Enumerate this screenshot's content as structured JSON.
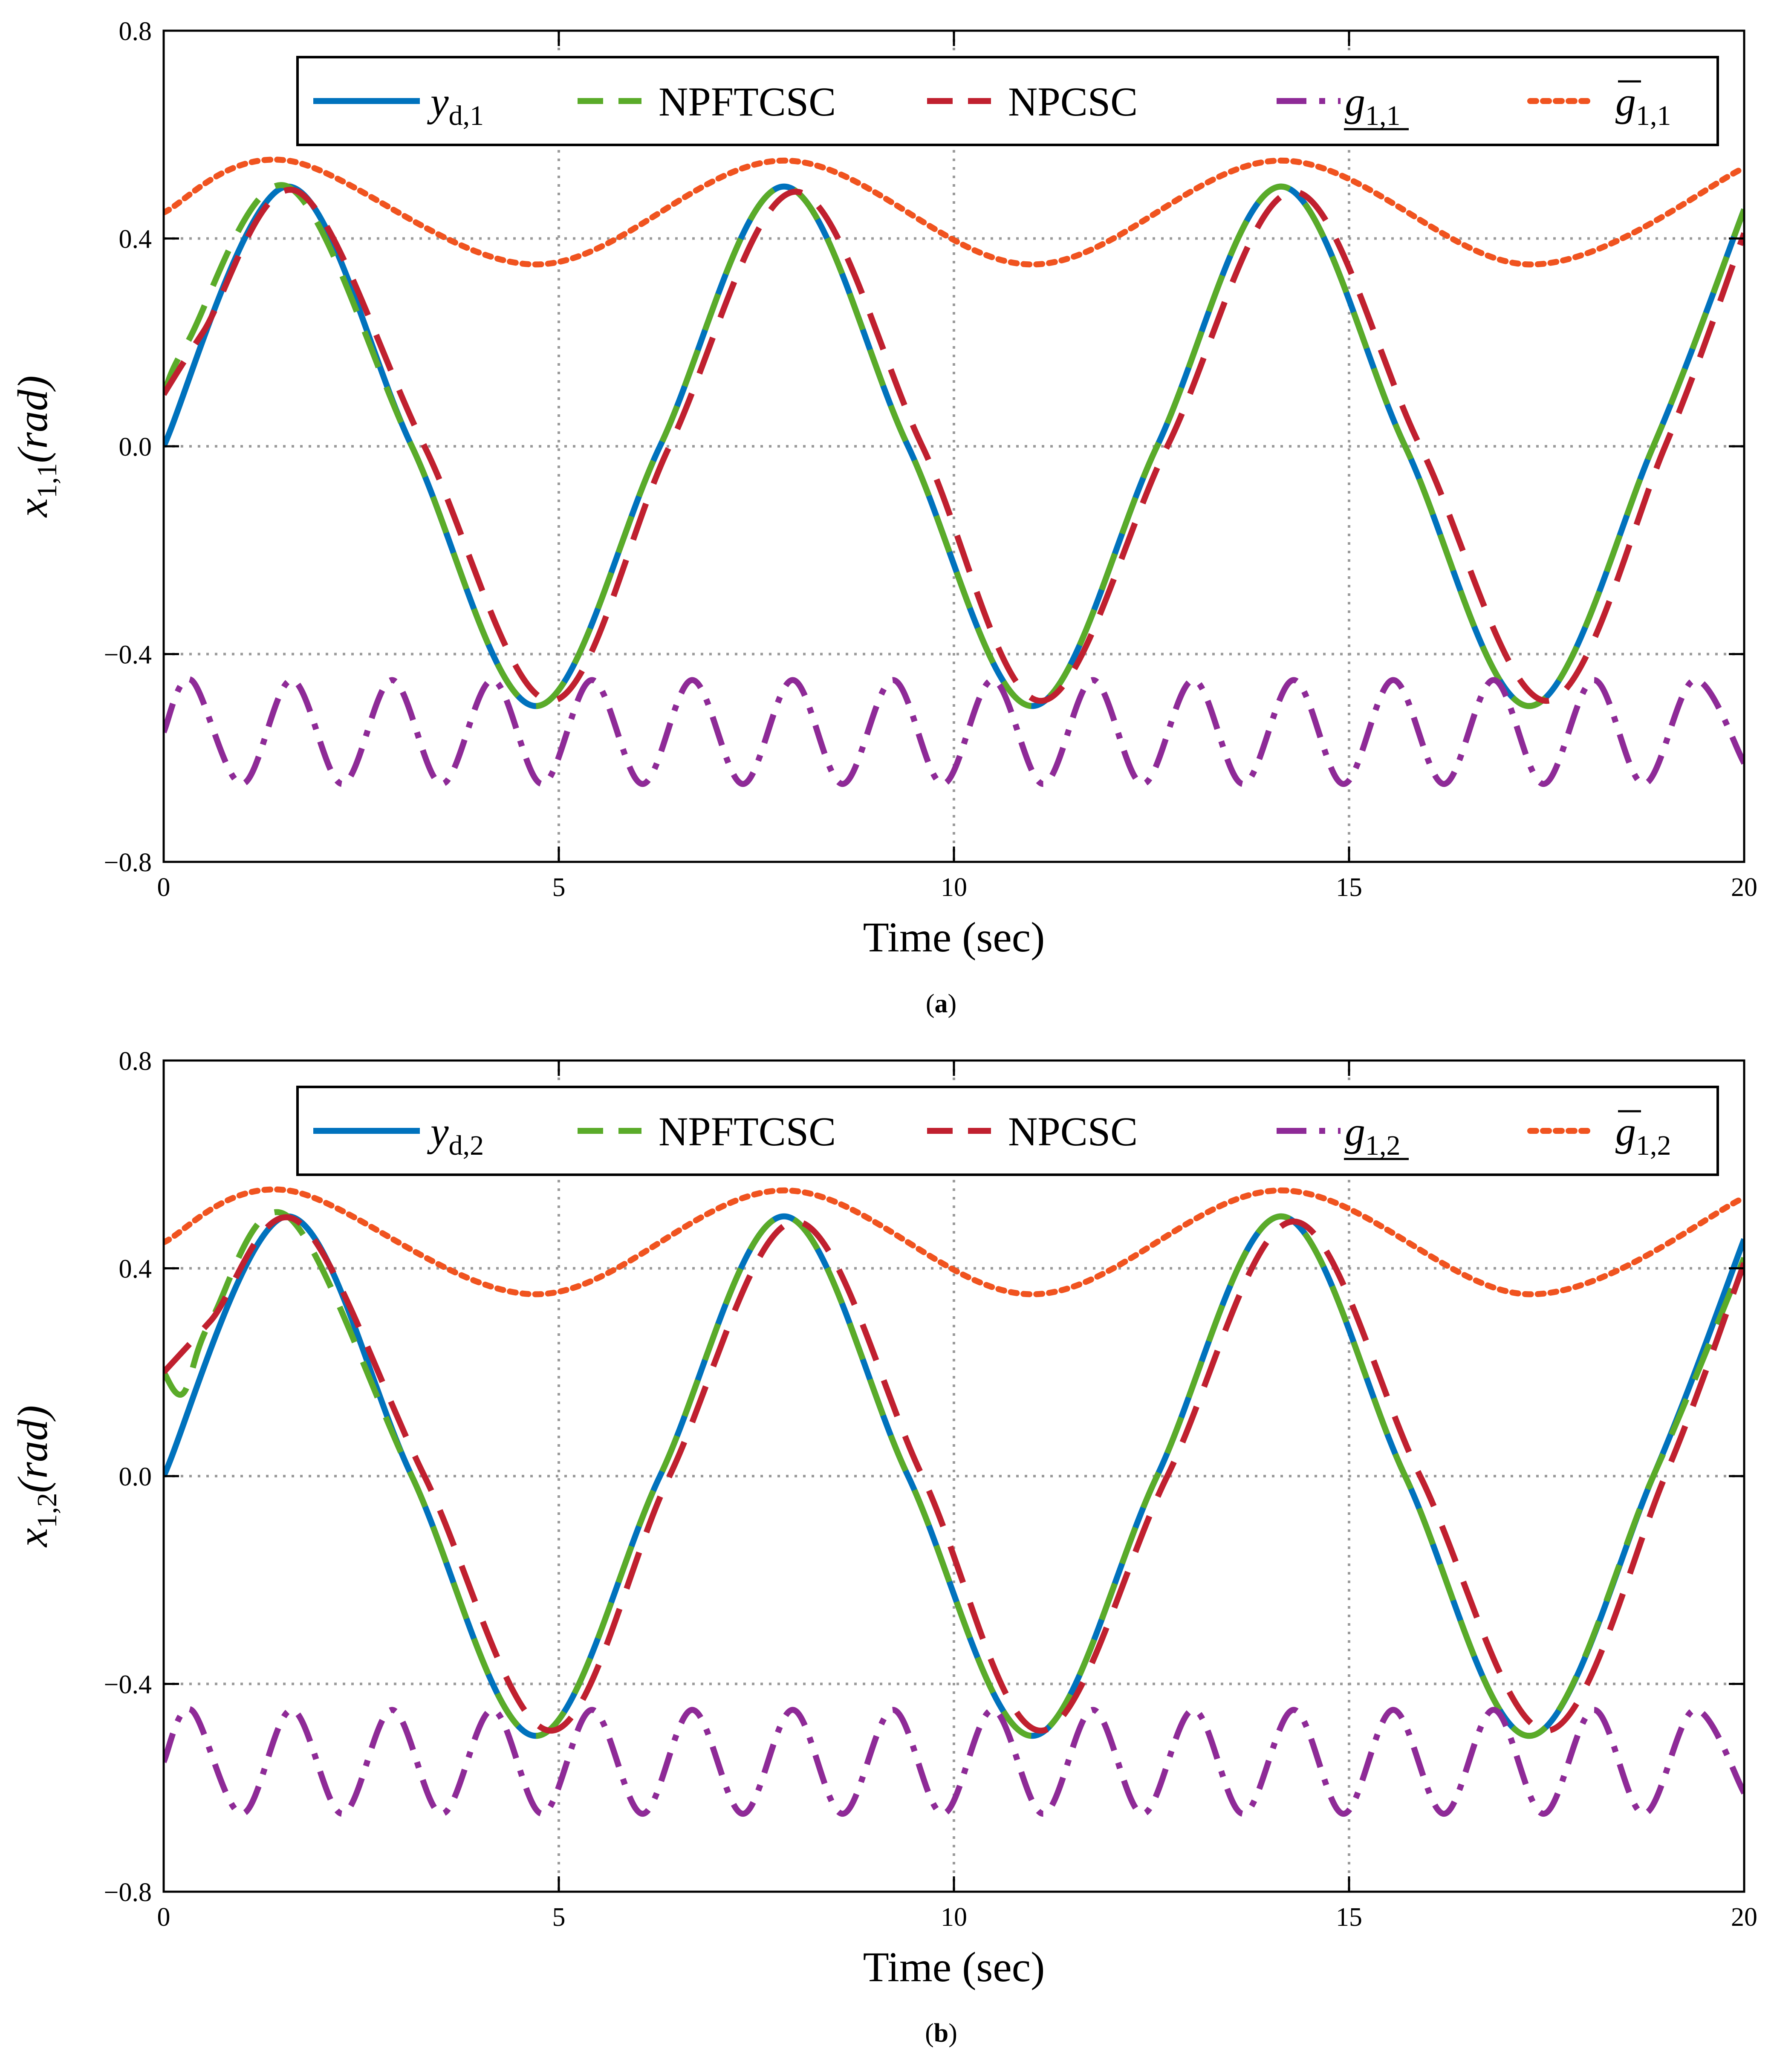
{
  "chart_data": [
    {
      "type": "line",
      "panel_label": "a",
      "caption": {
        "open": "(",
        "label": "a",
        "close": ")"
      },
      "xlabel": "Time (sec)",
      "ylabel": {
        "var": "x",
        "sub": "1,1",
        "unit": "(rad)"
      },
      "xlim": [
        0,
        20
      ],
      "ylim": [
        -0.8,
        0.8
      ],
      "xticks": [
        0,
        5,
        10,
        15,
        20
      ],
      "xtick_labels": [
        "0",
        "5",
        "10",
        "15",
        "20"
      ],
      "yticks": [
        -0.8,
        -0.4,
        0.0,
        0.4,
        0.8
      ],
      "ytick_labels": [
        "−0.8",
        "−0.4",
        "0.0",
        "0.4",
        "0.8"
      ],
      "grid": true,
      "legend_position": "top-right",
      "series": [
        {
          "name": "y_d,1",
          "legend": {
            "base": "y",
            "sub": "d,1",
            "deco": ""
          },
          "color": "#0072bd",
          "dash": "solid",
          "x": [
            0,
            1.57,
            3.14,
            4.71,
            6.28,
            7.85,
            9.42,
            10.99,
            12.57,
            14.14,
            15.71,
            17.28,
            18.85,
            20
          ],
          "y": [
            0,
            0.5,
            0,
            -0.5,
            0,
            0.5,
            0,
            -0.5,
            0,
            0.5,
            0,
            -0.5,
            0,
            0.456
          ]
        },
        {
          "name": "NPFTCSC",
          "legend": {
            "base": "NPFTCSC",
            "sub": "",
            "deco": ""
          },
          "color": "#5aab29",
          "dash": "dashed",
          "x": [
            0,
            0.3,
            1.57,
            3.14,
            4.71,
            6.28,
            7.85,
            9.42,
            10.99,
            12.57,
            14.14,
            15.71,
            17.28,
            18.85,
            20
          ],
          "y": [
            0.1,
            0.2,
            0.5,
            0,
            -0.5,
            0,
            0.5,
            0,
            -0.5,
            0,
            0.5,
            0,
            -0.5,
            0,
            0.456
          ]
        },
        {
          "name": "NPCSC",
          "legend": {
            "base": "NPCSC",
            "sub": "",
            "deco": ""
          },
          "color": "#c0202f",
          "dash": "dashed",
          "x": [
            0,
            0.5,
            1.7,
            3.3,
            4.9,
            6.4,
            8.0,
            9.6,
            11.1,
            12.7,
            14.3,
            15.9,
            17.5,
            19.0,
            20
          ],
          "y": [
            0.1,
            0.22,
            0.49,
            0,
            -0.49,
            0,
            0.49,
            0,
            -0.49,
            0,
            0.49,
            0,
            -0.49,
            0,
            0.41
          ]
        },
        {
          "name": "g_1,1 (lower)",
          "legend": {
            "base": "g",
            "sub": "1,1",
            "deco": "under"
          },
          "color": "#8e2a97",
          "dash": "dashdot",
          "x": [
            0,
            0.35,
            0.99,
            1.62,
            2.26,
            2.89,
            3.52,
            4.16,
            4.79,
            5.42,
            6.06,
            6.69,
            7.33,
            7.96,
            8.59,
            9.23,
            9.86,
            10.49,
            11.13,
            11.76,
            12.39,
            13.03,
            13.66,
            14.3,
            14.93,
            15.56,
            16.2,
            16.83,
            17.46,
            18.1,
            18.73,
            19.37,
            20
          ],
          "y": [
            -0.55,
            -0.45,
            -0.65,
            -0.45,
            -0.65,
            -0.45,
            -0.65,
            -0.45,
            -0.65,
            -0.45,
            -0.65,
            -0.45,
            -0.65,
            -0.45,
            -0.65,
            -0.45,
            -0.65,
            -0.45,
            -0.65,
            -0.45,
            -0.65,
            -0.45,
            -0.65,
            -0.45,
            -0.65,
            -0.45,
            -0.65,
            -0.45,
            -0.65,
            -0.45,
            -0.65,
            -0.45,
            -0.61
          ]
        },
        {
          "name": "g_1,1 (upper)",
          "legend": {
            "base": "g",
            "sub": "1,1",
            "deco": "over"
          },
          "color": "#f0531f",
          "dash": "dotted",
          "x": [
            0,
            1.57,
            4.71,
            7.85,
            10.99,
            14.14,
            17.28,
            20
          ],
          "y": [
            0.45,
            0.55,
            0.35,
            0.55,
            0.35,
            0.55,
            0.35,
            0.536
          ]
        }
      ]
    },
    {
      "type": "line",
      "panel_label": "b",
      "caption": {
        "open": "(",
        "label": "b",
        "close": ")"
      },
      "xlabel": "Time (sec)",
      "ylabel": {
        "var": "x",
        "sub": "1,2",
        "unit": "(rad)"
      },
      "xlim": [
        0,
        20
      ],
      "ylim": [
        -0.8,
        0.8
      ],
      "xticks": [
        0,
        5,
        10,
        15,
        20
      ],
      "xtick_labels": [
        "0",
        "5",
        "10",
        "15",
        "20"
      ],
      "yticks": [
        -0.8,
        -0.4,
        0.0,
        0.4,
        0.8
      ],
      "ytick_labels": [
        "−0.8",
        "−0.4",
        "0.0",
        "0.4",
        "0.8"
      ],
      "grid": true,
      "legend_position": "top-right",
      "series": [
        {
          "name": "y_d,2",
          "legend": {
            "base": "y",
            "sub": "d,2",
            "deco": ""
          },
          "color": "#0072bd",
          "dash": "solid",
          "x": [
            0,
            1.57,
            3.14,
            4.71,
            6.28,
            7.85,
            9.42,
            10.99,
            12.57,
            14.14,
            15.71,
            17.28,
            18.85,
            20
          ],
          "y": [
            0,
            0.5,
            0,
            -0.5,
            0,
            0.5,
            0,
            -0.5,
            0,
            0.5,
            0,
            -0.5,
            0,
            0.456
          ]
        },
        {
          "name": "NPFTCSC",
          "legend": {
            "base": "NPFTCSC",
            "sub": "",
            "deco": ""
          },
          "color": "#5aab29",
          "dash": "dashed",
          "x": [
            0,
            0.25,
            0.6,
            1.57,
            3.14,
            4.71,
            6.28,
            7.85,
            9.42,
            10.99,
            12.57,
            14.14,
            15.71,
            17.28,
            18.85,
            20
          ],
          "y": [
            0.2,
            0.16,
            0.3,
            0.5,
            0,
            -0.5,
            0,
            0.5,
            0,
            -0.5,
            0,
            0.5,
            0,
            -0.5,
            0,
            0.42
          ]
        },
        {
          "name": "NPCSC",
          "legend": {
            "base": "NPCSC",
            "sub": "",
            "deco": ""
          },
          "color": "#c0202f",
          "dash": "dashed",
          "x": [
            0,
            0.6,
            1.7,
            3.3,
            4.9,
            6.4,
            8.0,
            9.6,
            11.1,
            12.7,
            14.3,
            15.9,
            17.5,
            19.0,
            20
          ],
          "y": [
            0.2,
            0.3,
            0.49,
            0,
            -0.49,
            0,
            0.49,
            0,
            -0.49,
            0,
            0.49,
            0,
            -0.49,
            0,
            0.41
          ]
        },
        {
          "name": "g_1,2 (lower)",
          "legend": {
            "base": "g",
            "sub": "1,2",
            "deco": "under"
          },
          "color": "#8e2a97",
          "dash": "dashdot",
          "x": [
            0,
            0.35,
            0.99,
            1.62,
            2.26,
            2.89,
            3.52,
            4.16,
            4.79,
            5.42,
            6.06,
            6.69,
            7.33,
            7.96,
            8.59,
            9.23,
            9.86,
            10.49,
            11.13,
            11.76,
            12.39,
            13.03,
            13.66,
            14.3,
            14.93,
            15.56,
            16.2,
            16.83,
            17.46,
            18.1,
            18.73,
            19.37,
            20
          ],
          "y": [
            -0.55,
            -0.45,
            -0.65,
            -0.45,
            -0.65,
            -0.45,
            -0.65,
            -0.45,
            -0.65,
            -0.45,
            -0.65,
            -0.45,
            -0.65,
            -0.45,
            -0.65,
            -0.45,
            -0.65,
            -0.45,
            -0.65,
            -0.45,
            -0.65,
            -0.45,
            -0.65,
            -0.45,
            -0.65,
            -0.45,
            -0.65,
            -0.45,
            -0.65,
            -0.45,
            -0.65,
            -0.45,
            -0.61
          ]
        },
        {
          "name": "g_1,2 (upper)",
          "legend": {
            "base": "g",
            "sub": "1,2",
            "deco": "over"
          },
          "color": "#f0531f",
          "dash": "dotted",
          "x": [
            0,
            1.57,
            4.71,
            7.85,
            10.99,
            14.14,
            17.28,
            20
          ],
          "y": [
            0.45,
            0.55,
            0.35,
            0.55,
            0.35,
            0.55,
            0.35,
            0.536
          ]
        }
      ]
    }
  ]
}
